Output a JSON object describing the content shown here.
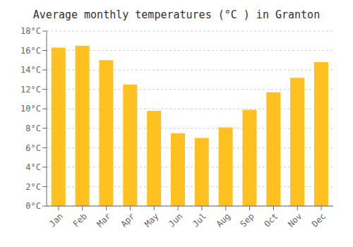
{
  "chart_data": {
    "type": "bar",
    "title": "Average monthly temperatures (°C ) in Granton",
    "categories": [
      "Jan",
      "Feb",
      "Mar",
      "Apr",
      "May",
      "Jun",
      "Jul",
      "Aug",
      "Sep",
      "Oct",
      "Nov",
      "Dec"
    ],
    "values": [
      16.3,
      16.5,
      15.0,
      12.5,
      9.8,
      7.5,
      7.0,
      8.1,
      9.9,
      11.7,
      13.2,
      14.8
    ],
    "color": "#FFC020",
    "ylim": [
      0,
      18
    ],
    "yticks": [
      {
        "value": 0,
        "label": "0°C"
      },
      {
        "value": 2,
        "label": "2°C"
      },
      {
        "value": 4,
        "label": "4°C"
      },
      {
        "value": 6,
        "label": "6°C"
      },
      {
        "value": 8,
        "label": "8°C"
      },
      {
        "value": 10,
        "label": "10°C"
      },
      {
        "value": 12,
        "label": "12°C"
      },
      {
        "value": 14,
        "label": "14°C"
      },
      {
        "value": 16,
        "label": "16°C"
      },
      {
        "value": 18,
        "label": "18°C"
      }
    ],
    "grid": true
  }
}
